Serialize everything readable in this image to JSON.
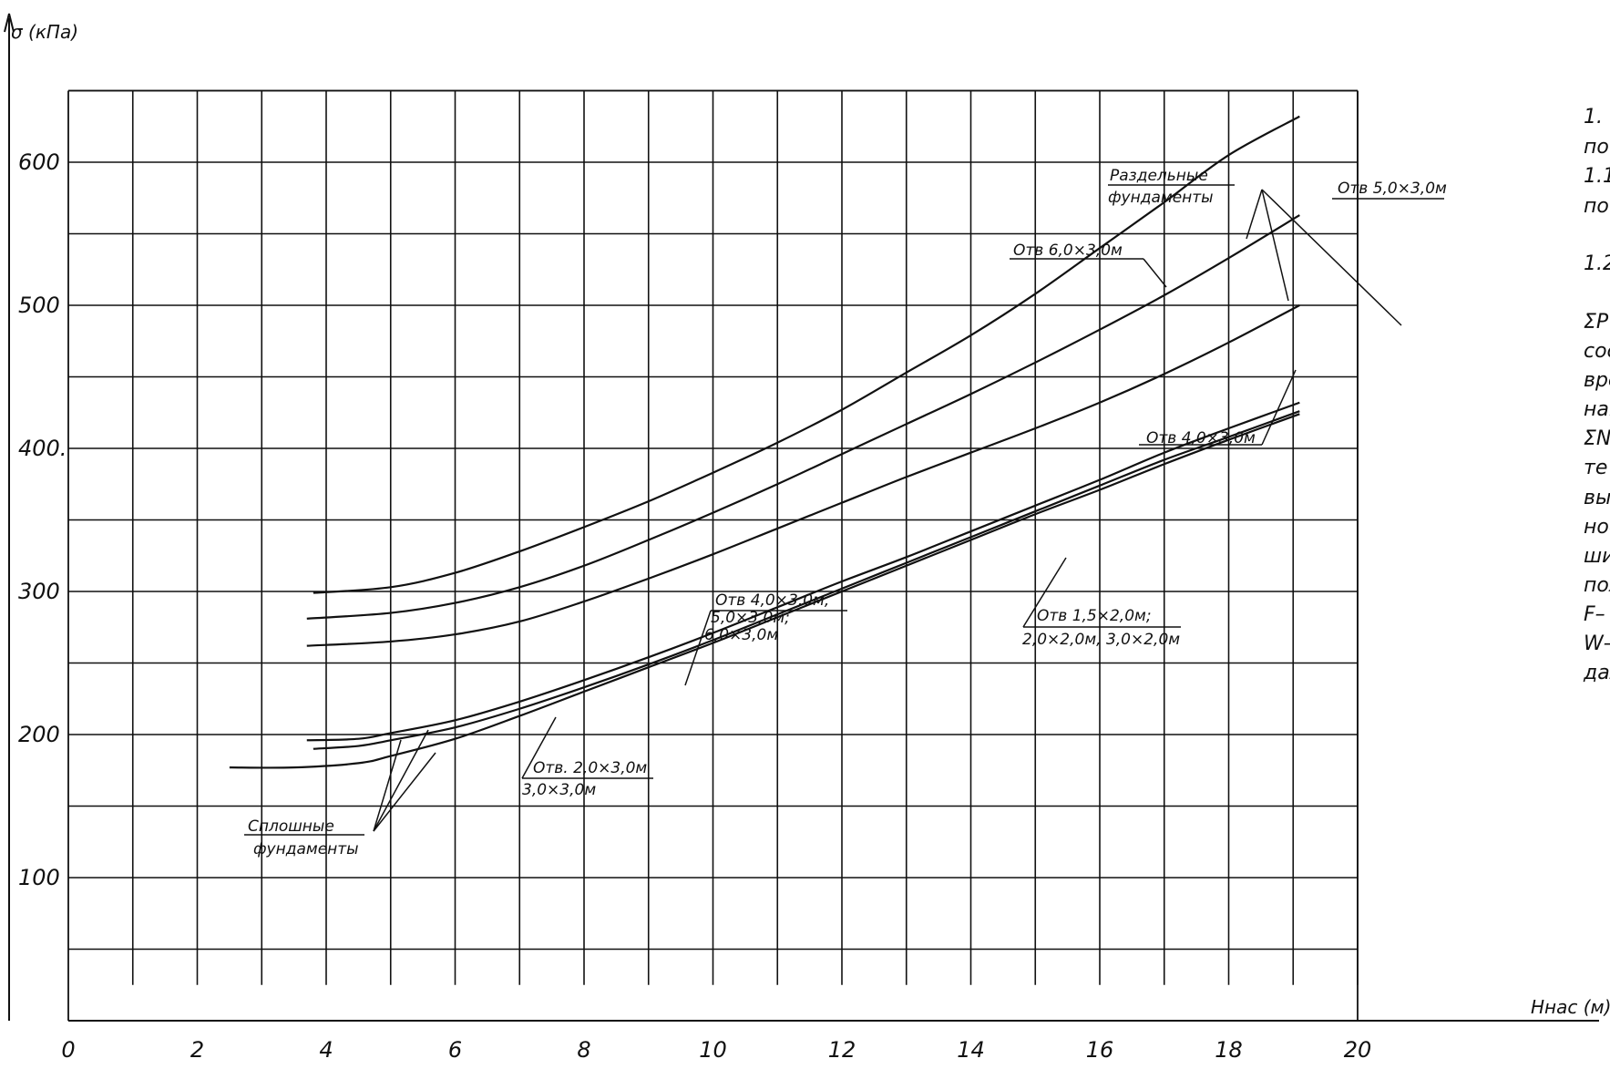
{
  "chart_data": {
    "type": "line",
    "xlabel": "Hнас (м)",
    "ylabel": "σ (кПа)",
    "xlim": [
      0,
      20
    ],
    "ylim": [
      0,
      650
    ],
    "x_ticks": [
      "0",
      "2",
      "4",
      "6",
      "8",
      "10",
      "12",
      "14",
      "16",
      "18",
      "20"
    ],
    "y_ticks": [
      {
        "value": 100,
        "label": "100"
      },
      {
        "value": 200,
        "label": "200"
      },
      {
        "value": 300,
        "label": "300"
      },
      {
        "value": 400,
        "label": "400."
      },
      {
        "value": 500,
        "label": "500"
      },
      {
        "value": 600,
        "label": "600"
      }
    ],
    "grid": true,
    "series": [
      {
        "name": "Отв 6,0×3,0м",
        "group": "Раздельные фундаменты",
        "x": [
          3.8,
          5,
          6,
          7,
          8,
          9,
          10,
          11,
          12,
          13,
          14,
          15,
          16,
          17,
          18,
          19.1
        ],
        "y": [
          299,
          303,
          313,
          328,
          345,
          363,
          383,
          404,
          427,
          453,
          479,
          508,
          540,
          572,
          605,
          632
        ]
      },
      {
        "name": "Отв 5,0×3,0м",
        "group": "Раздельные фундаменты",
        "x": [
          3.7,
          5,
          6,
          7,
          8,
          9,
          10,
          11,
          12,
          13,
          14,
          15,
          16,
          17,
          18,
          19.1
        ],
        "y": [
          281,
          285,
          292,
          303,
          318,
          336,
          355,
          375,
          396,
          417,
          438,
          460,
          483,
          507,
          533,
          563
        ]
      },
      {
        "name": "Отв 4,0×3,0м",
        "group": "Раздельные фундаменты",
        "x": [
          3.7,
          5,
          6,
          7,
          8,
          9,
          10,
          11,
          12,
          13,
          14,
          15,
          16,
          17,
          18,
          19.1
        ],
        "y": [
          262,
          265,
          270,
          279,
          293,
          309,
          326,
          344,
          362,
          380,
          397,
          414,
          432,
          452,
          474,
          500
        ]
      },
      {
        "name": "Отв 4,0×3,0м, 5,0×3,0м; 6,0×3,0м",
        "group": "Сплошные фундаменты",
        "x": [
          3.7,
          4.5,
          5,
          6,
          7,
          8,
          9,
          10,
          11,
          12,
          13,
          14,
          15,
          16,
          17,
          18,
          19.1
        ],
        "y": [
          196,
          197,
          201,
          210,
          223,
          238,
          254,
          271,
          289,
          307,
          324,
          342,
          360,
          378,
          397,
          414,
          432
        ]
      },
      {
        "name": "Отв 1,5×2,0м; 2,0×2,0м, 3,0×2,0м",
        "group": "Сплошные фундаменты",
        "x": [
          3.8,
          4.5,
          5,
          6,
          7,
          8,
          9,
          10,
          11,
          12,
          13,
          14,
          15,
          16,
          17,
          18,
          19.1
        ],
        "y": [
          190,
          192,
          196,
          205,
          218,
          233,
          249,
          266,
          284,
          302,
          320,
          338,
          356,
          374,
          392,
          408,
          426
        ]
      },
      {
        "name": "Отв. 2,0×3,0м 3,0×3,0м",
        "group": "Сплошные фундаменты",
        "x": [
          2.5,
          3.5,
          4.5,
          5,
          6,
          7,
          8,
          9,
          10,
          11,
          12,
          13,
          14,
          15,
          16,
          17,
          18,
          19.1
        ],
        "y": [
          177,
          177,
          180,
          185,
          197,
          213,
          230,
          247,
          264,
          282,
          300,
          318,
          336,
          354,
          371,
          389,
          406,
          424
        ]
      }
    ],
    "annotations": {
      "separate_label_line1": "Раздельные",
      "separate_label_line2": "фундаменты",
      "solid_label_line1": "Сплошные",
      "solid_label_line2": "фундаменты",
      "s6_label": "Отв 6,0×3,0м",
      "s5_label": "Отв 5,0×3,0м",
      "s4_label": "Отв 4,0×3,0м",
      "c1_line1": "Отв 4,0×3,0м,",
      "c1_line2": "5,0×3,0м;",
      "c1_line3": "6,0×3,0м",
      "c2_line1": "Отв 1,5×2,0м;",
      "c2_line2": "2,0×2,0м, 3,0×2,0м",
      "c3_line1": "Отв. 2,0×3,0м",
      "c3_line2": "3,0×3,0м"
    }
  },
  "side_notes": [
    "1.",
    "по",
    "1.1",
    "по",
    "1.2",
    "ΣP",
    "сос",
    "вре",
    "нав",
    "ΣN",
    "те",
    "вы",
    "нос",
    "ши",
    "пол",
    "F–",
    "W–",
    "дал"
  ]
}
